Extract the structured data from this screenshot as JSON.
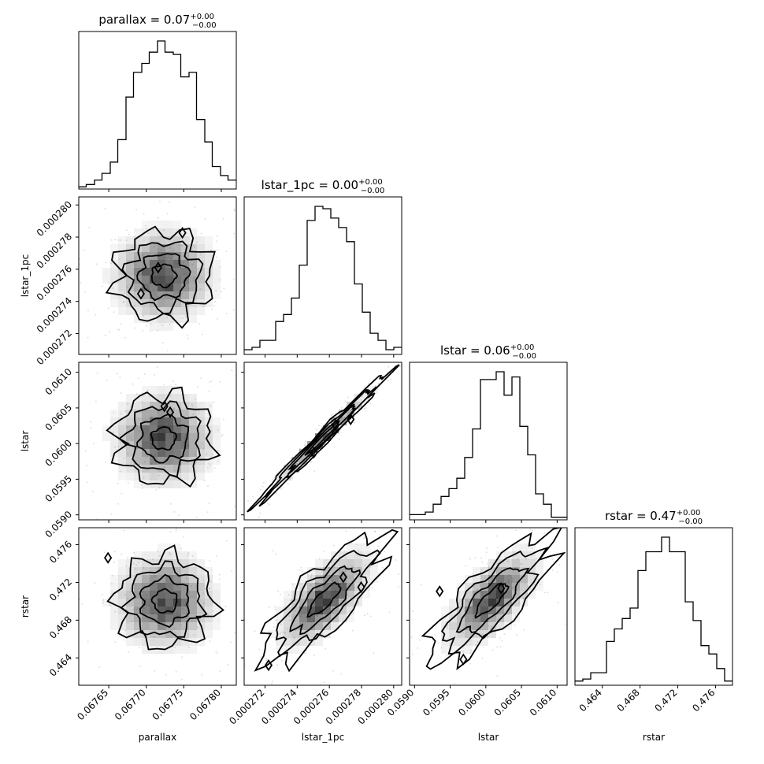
{
  "chart_data": {
    "type": "corner",
    "parameters": [
      "parallax",
      "lstar_1pc",
      "lstar",
      "rstar"
    ],
    "axis_labels": {
      "parallax": "parallax",
      "lstar_1pc": "lstar_1pc",
      "lstar": "lstar",
      "rstar": "rstar"
    },
    "titles": [
      {
        "param": "parallax",
        "text": "parallax = 0.07",
        "plus": "+0.00",
        "minus": "−0.00"
      },
      {
        "param": "lstar_1pc",
        "text": "lstar_1pc = 0.00",
        "plus": "+0.00",
        "minus": "−0.00"
      },
      {
        "param": "lstar",
        "text": "lstar = 0.06",
        "plus": "+0.00",
        "minus": "−0.00"
      },
      {
        "param": "rstar",
        "text": "rstar = 0.47",
        "plus": "+0.00",
        "minus": "−0.00"
      }
    ],
    "ranges": {
      "parallax": [
        0.06761,
        0.06782
      ],
      "lstar_1pc": [
        0.0002707,
        0.0002805
      ],
      "lstar": [
        0.05893,
        0.06114
      ],
      "rstar": [
        0.4611,
        0.4778
      ]
    },
    "ticks": {
      "parallax": [
        "0.06765",
        "0.06770",
        "0.06775",
        "0.06780"
      ],
      "lstar_1pc": [
        "0.000272",
        "0.000274",
        "0.000276",
        "0.000278",
        "0.000280"
      ],
      "lstar": [
        "0.0590",
        "0.0595",
        "0.0600",
        "0.0605",
        "0.0610"
      ],
      "rstar": [
        "0.464",
        "0.468",
        "0.472",
        "0.476"
      ]
    },
    "histograms": {
      "parallax": {
        "bin_edges": [
          0.06761,
          0.06762,
          0.067631,
          0.067641,
          0.067652,
          0.067662,
          0.067673,
          0.067683,
          0.067694,
          0.067704,
          0.067715,
          0.067725,
          0.067736,
          0.067746,
          0.067757,
          0.067767,
          0.067778,
          0.067788,
          0.067799,
          0.067809,
          0.06782
        ],
        "counts": [
          1,
          2,
          4,
          7,
          12,
          22,
          41,
          52,
          56,
          61,
          66,
          61,
          60,
          50,
          52,
          31,
          21,
          10,
          6,
          4
        ]
      },
      "lstar_1pc": {
        "bin_edges": [
          0.0002707,
          0.00027119,
          0.00027168,
          0.00027217,
          0.00027266,
          0.00027315,
          0.00027364,
          0.00027413,
          0.00027462,
          0.00027511,
          0.0002756,
          0.00027609,
          0.00027658,
          0.00027707,
          0.00027756,
          0.00027805,
          0.00027854,
          0.00027903,
          0.00027952,
          0.00028001,
          0.0002805
        ],
        "counts": [
          2,
          3,
          6,
          6,
          14,
          17,
          24,
          38,
          57,
          63,
          62,
          58,
          54,
          48,
          30,
          18,
          9,
          6,
          2,
          3
        ]
      },
      "lstar": {
        "bin_edges": [
          0.05893,
          0.0590405,
          0.059151,
          0.0592615,
          0.059372,
          0.0594825,
          0.059593,
          0.0597035,
          0.059814,
          0.0599245,
          0.060035,
          0.0601455,
          0.060256,
          0.0603665,
          0.060477,
          0.0605875,
          0.060698,
          0.0608085,
          0.060919,
          0.0610295,
          0.06114
        ],
        "counts": [
          2,
          2,
          3,
          6,
          9,
          12,
          16,
          24,
          35,
          54,
          54,
          57,
          48,
          55,
          36,
          25,
          10,
          6,
          1,
          1
        ]
      },
      "rstar": {
        "bin_edges": [
          0.4611,
          0.461935,
          0.46277,
          0.463605,
          0.46444,
          0.465275,
          0.46611,
          0.466945,
          0.46778,
          0.468615,
          0.46945,
          0.470285,
          0.47112,
          0.471955,
          0.47279,
          0.473625,
          0.47446,
          0.475295,
          0.47613,
          0.476965,
          0.4778
        ],
        "counts": [
          2,
          3,
          6,
          6,
          21,
          27,
          32,
          37,
          55,
          64,
          64,
          71,
          64,
          64,
          40,
          31,
          19,
          15,
          8,
          2
        ]
      }
    },
    "density_peaks": [
      {
        "x_param": "parallax",
        "y_param": "lstar_1pc",
        "center": [
          0.067723,
          0.0002756
        ],
        "sigma": [
          2.8e-05,
          1.2e-06
        ],
        "corr": 0.0
      },
      {
        "x_param": "parallax",
        "y_param": "lstar",
        "center": [
          0.067723,
          0.06007
        ],
        "sigma": [
          2.8e-05,
          0.00027
        ],
        "corr": 0.0
      },
      {
        "x_param": "lstar_1pc",
        "y_param": "lstar",
        "center": [
          0.0002756,
          0.06008
        ],
        "sigma": [
          1.2e-06,
          0.00027
        ],
        "corr": 0.98
      },
      {
        "x_param": "parallax",
        "y_param": "rstar",
        "center": [
          0.067725,
          0.47
        ],
        "sigma": [
          2.8e-05,
          0.0021
        ],
        "corr": 0.0
      },
      {
        "x_param": "lstar_1pc",
        "y_param": "rstar",
        "center": [
          0.0002757,
          0.4702
        ],
        "sigma": [
          1.2e-06,
          0.0021
        ],
        "corr": 0.65
      },
      {
        "x_param": "lstar",
        "y_param": "rstar",
        "center": [
          0.06008,
          0.4702
        ],
        "sigma": [
          0.00027,
          0.0021
        ],
        "corr": 0.65
      }
    ],
    "contour_levels_sigma": [
      0.5,
      1.0,
      1.5,
      2.0
    ],
    "colors": {
      "frame": "#000000",
      "histogram": "#000000",
      "contour": "#000000",
      "density": "#000000",
      "background": "#ffffff"
    }
  }
}
